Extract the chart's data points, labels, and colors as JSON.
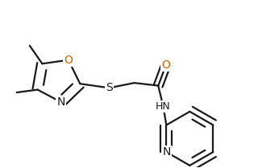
{
  "line_color": "#1a1a1a",
  "atom_colors": {
    "O": "#cc6600",
    "N": "#1a1a1a",
    "S": "#1a1a1a",
    "C": "#1a1a1a"
  },
  "label_colors": {
    "O": "#cc6600",
    "N": "#1a1a1a",
    "S": "#1a1a1a",
    "HN": "#1a1a1a"
  },
  "font_size_atom": 10,
  "lw": 1.6
}
